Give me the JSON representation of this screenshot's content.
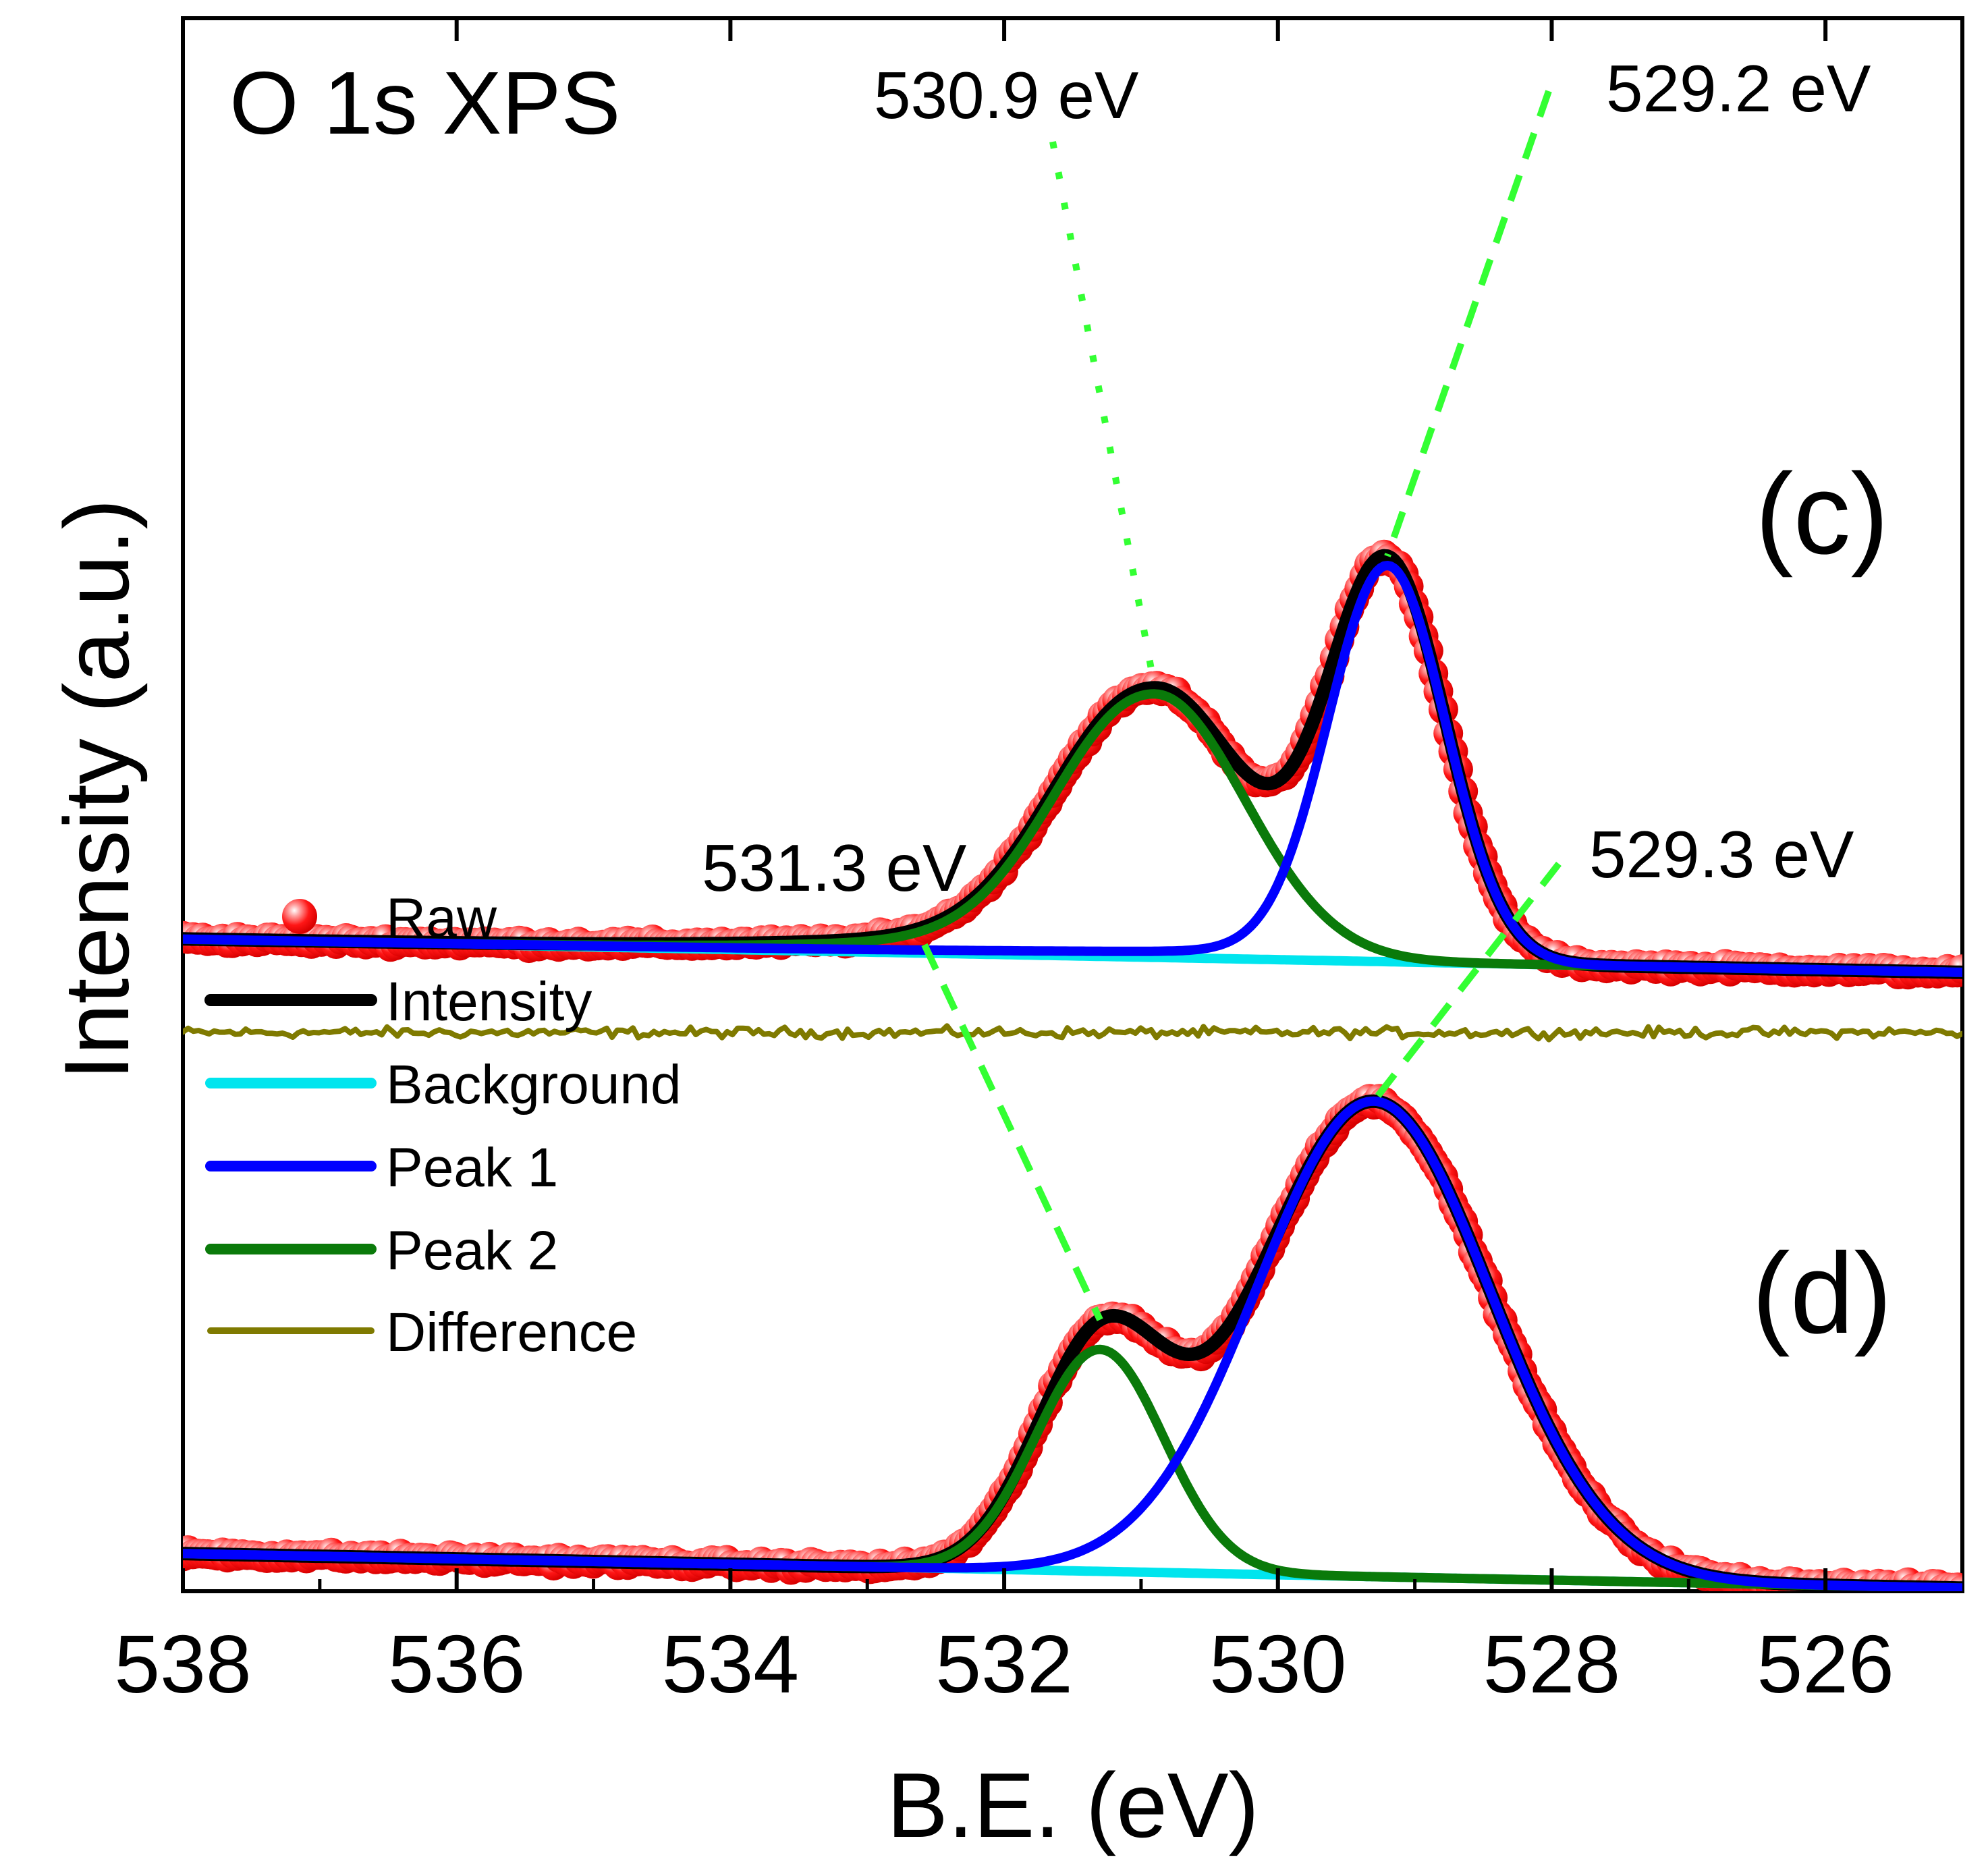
{
  "chart_data": {
    "type": "line",
    "title": "O 1s XPS",
    "xlabel": "B.E. (eV)",
    "ylabel": "Intensity (a.u.)",
    "xlim": [
      538,
      525
    ],
    "x_reversed": true,
    "xticks": [
      "538",
      "536",
      "534",
      "532",
      "530",
      "528",
      "526"
    ],
    "xticks_values": [
      538,
      536,
      534,
      532,
      530,
      528,
      526
    ],
    "minor_xticks_values": [
      537,
      535,
      533,
      531,
      529,
      527
    ],
    "ylim": [
      -1.55,
      2.42
    ],
    "y_ticks_shown": false,
    "legend": {
      "placement": "left-middle",
      "entries": [
        {
          "label": "Raw",
          "style": "marker",
          "color": "#ff1a1a"
        },
        {
          "label": "Intensity",
          "style": "line",
          "color": "#000000"
        },
        {
          "label": "Background",
          "style": "line",
          "color": "#00e5ee"
        },
        {
          "label": "Peak 1",
          "style": "line",
          "color": "#0000ff"
        },
        {
          "label": "Peak 2",
          "style": "line",
          "color": "#0a7a0a"
        },
        {
          "label": "Difference",
          "style": "line",
          "color": "#7f7a00"
        }
      ]
    },
    "annotation_color": "#33ff33",
    "panels": [
      {
        "tag": "(c)",
        "baseline_offset": 0,
        "difference_offset": -0.14,
        "background": {
          "at_538": 0.095,
          "at_525": 0.012
        },
        "peak1": {
          "center": 529.2,
          "height": 1.0,
          "fwhm": 1.0,
          "tail": 0.03,
          "tail_decay": 2.5
        },
        "peak2": {
          "center": 530.9,
          "height": 0.665,
          "fwhm": 1.55,
          "tail": 0.18,
          "tail_decay": 1.3
        },
        "annotations": [
          {
            "text": "530.9 eV",
            "target_eV": 530.9
          },
          {
            "text": "529.2 eV",
            "target_eV": 529.2
          }
        ]
      },
      {
        "tag": "(d)",
        "baseline_offset": -1.55,
        "difference_offset": -0.16,
        "background": {
          "at_538": 0.095,
          "at_525": 0.008
        },
        "peak1": {
          "center": 529.3,
          "height": 1.2,
          "fwhm": 2.0,
          "tail": 0.0,
          "tail_decay": 1.0
        },
        "peak2": {
          "center": 531.3,
          "height": 0.56,
          "fwhm": 1.1,
          "tail": 0.0,
          "tail_decay": 1.0
        },
        "annotations": [
          {
            "text": "531.3 eV",
            "target_eV": 531.3
          },
          {
            "text": "529.3 eV",
            "target_eV": 529.3
          }
        ]
      }
    ]
  }
}
